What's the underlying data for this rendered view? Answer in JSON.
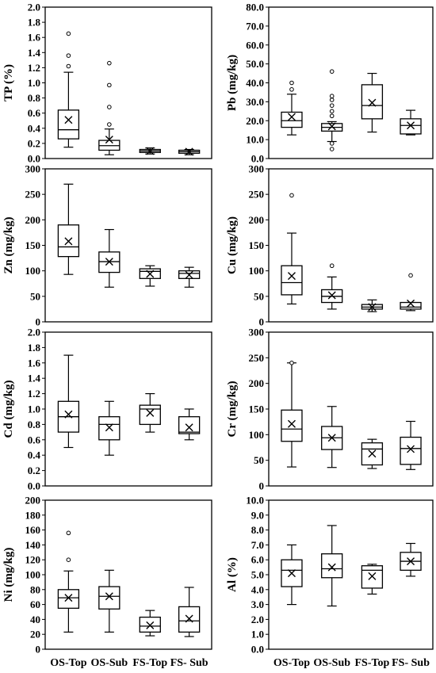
{
  "categories": [
    "OS-Top",
    "OS-Sub",
    "FS-Top",
    "FS- Sub"
  ],
  "chart_data": [
    {
      "type": "box",
      "ylabel": "TP (%)",
      "ylim": [
        0,
        2.0
      ],
      "ticks": [
        "0.0",
        "0.2",
        "0.4",
        "0.6",
        "0.8",
        "1.0",
        "1.2",
        "1.4",
        "1.6",
        "1.8",
        "2.0"
      ],
      "boxes": [
        {
          "category": "OS-Top",
          "min": 0.15,
          "q1": 0.26,
          "median": 0.38,
          "q3": 0.64,
          "max": 1.14,
          "mean": 0.51,
          "outliers": [
            1.22,
            1.36,
            1.65
          ]
        },
        {
          "category": "OS-Sub",
          "min": 0.05,
          "q1": 0.11,
          "median": 0.17,
          "q3": 0.24,
          "max": 0.39,
          "mean": 0.25,
          "outliers": [
            0.45,
            0.68,
            0.97,
            1.26
          ]
        },
        {
          "category": "FS-Top",
          "min": 0.06,
          "q1": 0.08,
          "median": 0.1,
          "q3": 0.12,
          "max": 0.14,
          "mean": 0.1,
          "outliers": []
        },
        {
          "category": "FS- Sub",
          "min": 0.05,
          "q1": 0.07,
          "median": 0.09,
          "q3": 0.11,
          "max": 0.12,
          "mean": 0.09,
          "outliers": []
        }
      ]
    },
    {
      "type": "box",
      "ylabel": "Pb (mg/kg)",
      "ylim": [
        0,
        80
      ],
      "ticks": [
        "0.0",
        "10.0",
        "20.0",
        "30.0",
        "40.0",
        "50.0",
        "60.0",
        "70.0",
        "80.0"
      ],
      "boxes": [
        {
          "category": "OS-Top",
          "min": 12.5,
          "q1": 16.5,
          "median": 20.0,
          "q3": 24.5,
          "max": 34.0,
          "mean": 22.0,
          "outliers": [
            36.5,
            40.0
          ]
        },
        {
          "category": "OS-Sub",
          "min": 9.0,
          "q1": 14.5,
          "median": 16.5,
          "q3": 18.5,
          "max": 19.5,
          "mean": 17.0,
          "outliers": [
            5.0,
            8.0,
            22.5,
            25.0,
            28.0,
            31.0,
            33.0,
            46.0
          ]
        },
        {
          "category": "FS-Top",
          "min": 14.0,
          "q1": 21.0,
          "median": 28.0,
          "q3": 39.0,
          "max": 45.0,
          "mean": 29.5,
          "outliers": []
        },
        {
          "category": "FS- Sub",
          "min": 12.5,
          "q1": 13.0,
          "median": 17.5,
          "q3": 21.0,
          "max": 25.5,
          "mean": 17.5,
          "outliers": []
        }
      ]
    },
    {
      "type": "box",
      "ylabel": "Zn (mg/kg)",
      "ylim": [
        0,
        300
      ],
      "ticks": [
        "0",
        "50",
        "100",
        "150",
        "200",
        "250",
        "300"
      ],
      "boxes": [
        {
          "category": "OS-Top",
          "min": 93,
          "q1": 128,
          "median": 147,
          "q3": 190,
          "max": 270,
          "mean": 158,
          "outliers": []
        },
        {
          "category": "OS-Sub",
          "min": 68,
          "q1": 97,
          "median": 118,
          "q3": 137,
          "max": 181,
          "mean": 118,
          "outliers": []
        },
        {
          "category": "FS-Top",
          "min": 70,
          "q1": 85,
          "median": 99,
          "q3": 104,
          "max": 110,
          "mean": 94,
          "outliers": []
        },
        {
          "category": "FS- Sub",
          "min": 68,
          "q1": 85,
          "median": 95,
          "q3": 100,
          "max": 107,
          "mean": 92,
          "outliers": []
        }
      ]
    },
    {
      "type": "box",
      "ylabel": "Cu (mg/kg)",
      "ylim": [
        0,
        300
      ],
      "ticks": [
        "0",
        "50",
        "100",
        "150",
        "200",
        "250",
        "300"
      ],
      "boxes": [
        {
          "category": "OS-Top",
          "min": 35,
          "q1": 53,
          "median": 77,
          "q3": 110,
          "max": 174,
          "mean": 90,
          "outliers": [
            248
          ]
        },
        {
          "category": "OS-Sub",
          "min": 25,
          "q1": 38,
          "median": 50,
          "q3": 63,
          "max": 88,
          "mean": 52,
          "outliers": [
            110
          ]
        },
        {
          "category": "FS-Top",
          "min": 20,
          "q1": 25,
          "median": 29,
          "q3": 34,
          "max": 43,
          "mean": 29,
          "outliers": []
        },
        {
          "category": "FS- Sub",
          "min": 22,
          "q1": 25,
          "median": 29,
          "q3": 38,
          "max": 38,
          "mean": 36,
          "outliers": [
            91
          ]
        }
      ]
    },
    {
      "type": "box",
      "ylabel": "Cd (mg/kg)",
      "ylim": [
        0,
        2.0
      ],
      "ticks": [
        "0.0",
        "0.2",
        "0.4",
        "0.6",
        "0.8",
        "1.0",
        "1.2",
        "1.4",
        "1.6",
        "1.8",
        "2.0"
      ],
      "boxes": [
        {
          "category": "OS-Top",
          "min": 0.5,
          "q1": 0.7,
          "median": 0.9,
          "q3": 1.1,
          "max": 1.7,
          "mean": 0.93,
          "outliers": []
        },
        {
          "category": "OS-Sub",
          "min": 0.4,
          "q1": 0.6,
          "median": 0.8,
          "q3": 0.9,
          "max": 1.1,
          "mean": 0.76,
          "outliers": []
        },
        {
          "category": "FS-Top",
          "min": 0.7,
          "q1": 0.8,
          "median": 1.0,
          "q3": 1.05,
          "max": 1.2,
          "mean": 0.95,
          "outliers": []
        },
        {
          "category": "FS- Sub",
          "min": 0.6,
          "q1": 0.68,
          "median": 0.7,
          "q3": 0.9,
          "max": 1.0,
          "mean": 0.76,
          "outliers": []
        }
      ]
    },
    {
      "type": "box",
      "ylabel": "Cr (mg/kg)",
      "ylim": [
        0,
        300
      ],
      "ticks": [
        "0",
        "50",
        "100",
        "150",
        "200",
        "250",
        "300"
      ],
      "boxes": [
        {
          "category": "OS-Top",
          "min": 37,
          "q1": 87,
          "median": 111,
          "q3": 148,
          "max": 240,
          "mean": 121,
          "outliers": [
            240
          ]
        },
        {
          "category": "OS-Sub",
          "min": 36,
          "q1": 71,
          "median": 94,
          "q3": 116,
          "max": 155,
          "mean": 94,
          "outliers": []
        },
        {
          "category": "FS-Top",
          "min": 34,
          "q1": 41,
          "median": 72,
          "q3": 84,
          "max": 91,
          "mean": 63,
          "outliers": []
        },
        {
          "category": "FS- Sub",
          "min": 32,
          "q1": 42,
          "median": 73,
          "q3": 95,
          "max": 126,
          "mean": 72,
          "outliers": []
        }
      ]
    },
    {
      "type": "box",
      "ylabel": "Ni (mg/kg)",
      "ylim": [
        0,
        200
      ],
      "ticks": [
        "0",
        "20",
        "40",
        "60",
        "80",
        "100",
        "120",
        "140",
        "160",
        "180",
        "200"
      ],
      "boxes": [
        {
          "category": "OS-Top",
          "min": 23,
          "q1": 55,
          "median": 69,
          "q3": 80,
          "max": 105,
          "mean": 69,
          "outliers": [
            120,
            156
          ]
        },
        {
          "category": "OS-Sub",
          "min": 23,
          "q1": 54,
          "median": 71,
          "q3": 84,
          "max": 106,
          "mean": 71,
          "outliers": []
        },
        {
          "category": "FS-Top",
          "min": 18,
          "q1": 23,
          "median": 31,
          "q3": 43,
          "max": 52,
          "mean": 32,
          "outliers": []
        },
        {
          "category": "FS- Sub",
          "min": 17,
          "q1": 23,
          "median": 38,
          "q3": 57,
          "max": 83,
          "mean": 41,
          "outliers": []
        }
      ]
    },
    {
      "type": "box",
      "ylabel": "Al (%)",
      "ylim": [
        0,
        10.0
      ],
      "ticks": [
        "0.0",
        "1.0",
        "2.0",
        "3.0",
        "4.0",
        "5.0",
        "6.0",
        "7.0",
        "8.0",
        "9.0",
        "10.0"
      ],
      "boxes": [
        {
          "category": "OS-Top",
          "min": 3.0,
          "q1": 4.2,
          "median": 5.3,
          "q3": 6.0,
          "max": 7.0,
          "mean": 5.1,
          "outliers": []
        },
        {
          "category": "OS-Sub",
          "min": 2.9,
          "q1": 4.8,
          "median": 5.4,
          "q3": 6.4,
          "max": 8.3,
          "mean": 5.5,
          "outliers": []
        },
        {
          "category": "FS-Top",
          "min": 3.7,
          "q1": 4.1,
          "median": 5.3,
          "q3": 5.6,
          "max": 5.7,
          "mean": 4.9,
          "outliers": []
        },
        {
          "category": "FS- Sub",
          "min": 4.9,
          "q1": 5.3,
          "median": 5.9,
          "q3": 6.5,
          "max": 7.1,
          "mean": 5.9,
          "outliers": []
        }
      ]
    }
  ]
}
